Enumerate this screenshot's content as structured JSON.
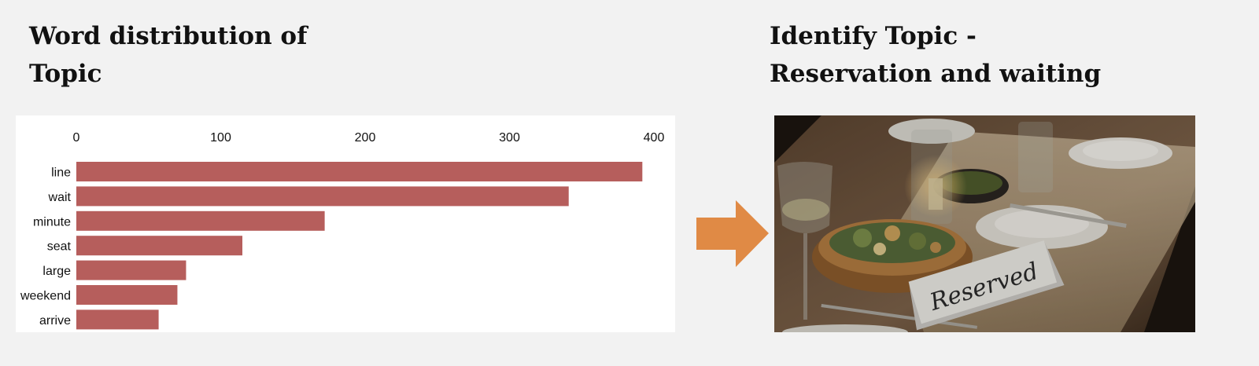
{
  "left_heading": {
    "line1": "Word distribution of",
    "line2": "Topic"
  },
  "right_heading": {
    "line1": "Identify Topic -",
    "line2": "Reservation and waiting"
  },
  "photo": {
    "sign_text": "Reserved"
  },
  "colors": {
    "bar": "#b65e5c",
    "arrow": "#e08a45",
    "background": "#f2f2f2"
  },
  "chart_data": {
    "type": "bar",
    "orientation": "horizontal",
    "categories": [
      "line",
      "wait",
      "minute",
      "seat",
      "large",
      "weekend",
      "arrive"
    ],
    "values": [
      392,
      341,
      172,
      115,
      76,
      70,
      57
    ],
    "xlim": [
      0,
      400
    ],
    "xticks": [
      0,
      100,
      200,
      300,
      400
    ],
    "x_axis_position": "top",
    "grid": false,
    "title": "",
    "xlabel": "",
    "ylabel": ""
  }
}
